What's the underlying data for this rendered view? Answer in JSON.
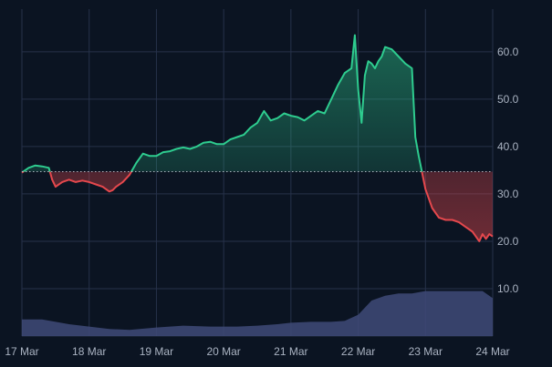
{
  "chart_data": {
    "type": "area",
    "baseline": 34.7,
    "ylim": [
      0,
      69
    ],
    "xlim": [
      0,
      7
    ],
    "y_ticks": [
      {
        "value": 10,
        "label": "10.0"
      },
      {
        "value": 20,
        "label": "20.0"
      },
      {
        "value": 30,
        "label": "30.0"
      },
      {
        "value": 40,
        "label": "40.0"
      },
      {
        "value": 50,
        "label": "50.0"
      },
      {
        "value": 60,
        "label": "60.0"
      }
    ],
    "x_ticks": [
      {
        "value": 0,
        "label": "17 Mar"
      },
      {
        "value": 1,
        "label": "18 Mar"
      },
      {
        "value": 2,
        "label": "19 Mar"
      },
      {
        "value": 3,
        "label": "20 Mar"
      },
      {
        "value": 4,
        "label": "21 Mar"
      },
      {
        "value": 5,
        "label": "22 Mar"
      },
      {
        "value": 6,
        "label": "23 Mar"
      },
      {
        "value": 7,
        "label": "24 Mar"
      }
    ],
    "grid": true,
    "colors": {
      "up": "#2ecc8f",
      "down": "#e5484d",
      "volume": "#3f4a78",
      "grid": "#27324a",
      "baseline": "#c9ced8",
      "background": "#0b1422"
    },
    "series": [
      {
        "type": "line",
        "x": [
          0,
          0.1,
          0.2,
          0.3,
          0.4,
          0.45,
          0.5,
          0.6,
          0.7,
          0.8,
          0.9,
          1.0,
          1.1,
          1.2,
          1.3,
          1.35,
          1.4,
          1.5,
          1.6,
          1.7,
          1.8,
          1.9,
          2.0,
          2.1,
          2.2,
          2.3,
          2.4,
          2.5,
          2.6,
          2.7,
          2.8,
          2.9,
          3.0,
          3.1,
          3.2,
          3.3,
          3.4,
          3.5,
          3.6,
          3.7,
          3.8,
          3.9,
          4.0,
          4.1,
          4.2,
          4.3,
          4.4,
          4.5,
          4.6,
          4.7,
          4.8,
          4.9,
          4.95,
          5.0,
          5.05,
          5.1,
          5.15,
          5.2,
          5.25,
          5.3,
          5.35,
          5.4,
          5.5,
          5.6,
          5.7,
          5.75,
          5.8,
          5.85,
          5.9,
          5.95,
          6.0,
          6.05,
          6.1,
          6.2,
          6.3,
          6.4,
          6.5,
          6.6,
          6.7,
          6.8,
          6.85,
          6.9,
          6.95,
          7.0
        ],
        "y": [
          34.5,
          35.5,
          36.0,
          35.8,
          35.5,
          33.0,
          31.5,
          32.5,
          33.0,
          32.5,
          32.8,
          32.5,
          32.0,
          31.5,
          30.5,
          30.8,
          31.5,
          32.5,
          34.0,
          36.5,
          38.5,
          38.0,
          38.0,
          38.8,
          39.0,
          39.5,
          39.8,
          39.5,
          40.0,
          40.8,
          41.0,
          40.5,
          40.5,
          41.5,
          42.0,
          42.5,
          44.0,
          45.0,
          47.5,
          45.5,
          46.0,
          47.0,
          46.5,
          46.2,
          45.5,
          46.5,
          47.5,
          47.0,
          50.0,
          53.0,
          55.5,
          56.5,
          63.5,
          52.0,
          45.0,
          55.0,
          58.0,
          57.5,
          56.5,
          58.0,
          59.0,
          61.0,
          60.5,
          59.0,
          57.5,
          57.0,
          56.5,
          42.0,
          38.0,
          34.5,
          31.0,
          29.0,
          27.0,
          25.0,
          24.5,
          24.5,
          24.0,
          23.0,
          22.0,
          20.0,
          21.5,
          20.5,
          21.5,
          21.0
        ]
      },
      {
        "type": "volume",
        "x": [
          0,
          0.3,
          0.5,
          0.7,
          1.0,
          1.3,
          1.6,
          2.0,
          2.4,
          2.8,
          3.2,
          3.5,
          3.8,
          4.0,
          4.3,
          4.6,
          4.8,
          5.0,
          5.2,
          5.4,
          5.6,
          5.8,
          6.0,
          6.3,
          6.6,
          6.85,
          7.0
        ],
        "y": [
          3.5,
          3.5,
          3.0,
          2.5,
          2.0,
          1.5,
          1.3,
          1.8,
          2.2,
          2.0,
          2.0,
          2.2,
          2.5,
          2.8,
          3.0,
          3.0,
          3.2,
          4.5,
          7.5,
          8.5,
          9.0,
          9.0,
          9.5,
          9.5,
          9.5,
          9.5,
          8.0
        ]
      }
    ]
  }
}
